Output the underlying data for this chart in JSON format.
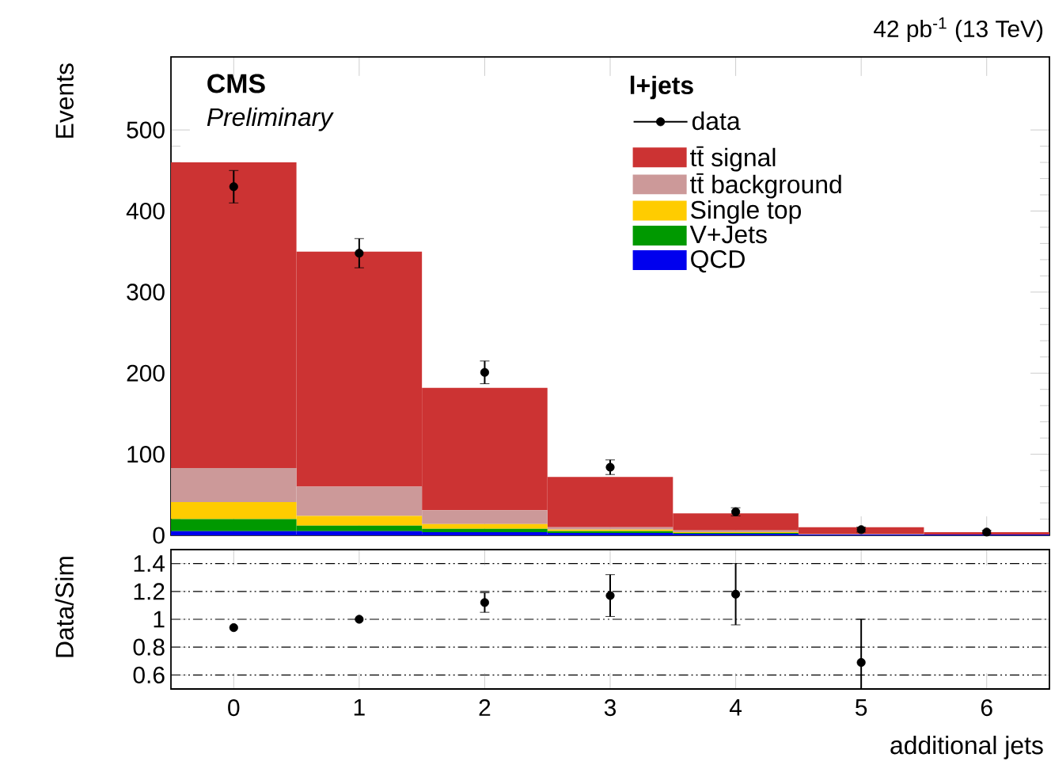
{
  "chart_data": [
    {
      "type": "bar",
      "title": "42 pb$^{-1}$ (13 TeV)",
      "ylabel": "Events",
      "legend_title": "l+jets",
      "annotations": [
        "CMS",
        "Preliminary"
      ],
      "x": [
        0,
        1,
        2,
        3,
        4,
        5,
        6
      ],
      "stacked": true,
      "legend": "top right",
      "tick_labels": "y",
      "marker": "circle",
      "xlim": [
        -0.5,
        6.5
      ],
      "xticks": [
        0,
        1,
        2,
        3,
        4,
        5,
        6
      ],
      "ylim": [
        0,
        590
      ],
      "yticks": [
        0,
        100,
        200,
        300,
        400,
        500
      ],
      "series": [
        {
          "name": "QCD",
          "color": "#0000ee",
          "values": [
            5,
            5,
            4,
            3,
            2,
            1,
            1
          ]
        },
        {
          "name": "V+Jets",
          "color": "#009900",
          "values": [
            15,
            7,
            4,
            2,
            1,
            0,
            0
          ]
        },
        {
          "name": "Single top",
          "color": "#ffcc00",
          "values": [
            21,
            12,
            6,
            2,
            1,
            0,
            0
          ]
        },
        {
          "name": "tt̄ background",
          "color": "#cc9999",
          "values": [
            42,
            36,
            17,
            3,
            2,
            1,
            0
          ]
        },
        {
          "name": "tt̄ signal",
          "color": "#cc3333",
          "values": [
            377,
            290,
            151,
            62,
            21,
            8,
            3
          ]
        },
        {
          "name": "data",
          "type": "scatter",
          "color": "#000000",
          "values": [
            430,
            348,
            201,
            84,
            29,
            7,
            4
          ],
          "errors": [
            20,
            18,
            14,
            9,
            5,
            3,
            2
          ]
        }
      ]
    },
    {
      "type": "scatter",
      "xlabel": "additional jets",
      "ylabel": "Data/Sim",
      "marker": "circle",
      "grid": "y",
      "x": [
        0,
        1,
        2,
        3,
        4,
        5
      ],
      "xlim": [
        -0.5,
        6.5
      ],
      "xticks": [
        0,
        1,
        2,
        3,
        4,
        5,
        6
      ],
      "ylim": [
        0.5,
        1.5
      ],
      "yticks": [
        0.6,
        0.8,
        1,
        1.2,
        1.4
      ],
      "series": [
        {
          "color": "#000000",
          "values": [
            0.94,
            1.0,
            1.12,
            1.17,
            1.18,
            0.69
          ],
          "errors": [
            null,
            null,
            0.07,
            0.15,
            0.22,
            [
              0.5,
              1.0
            ]
          ]
        }
      ]
    }
  ]
}
